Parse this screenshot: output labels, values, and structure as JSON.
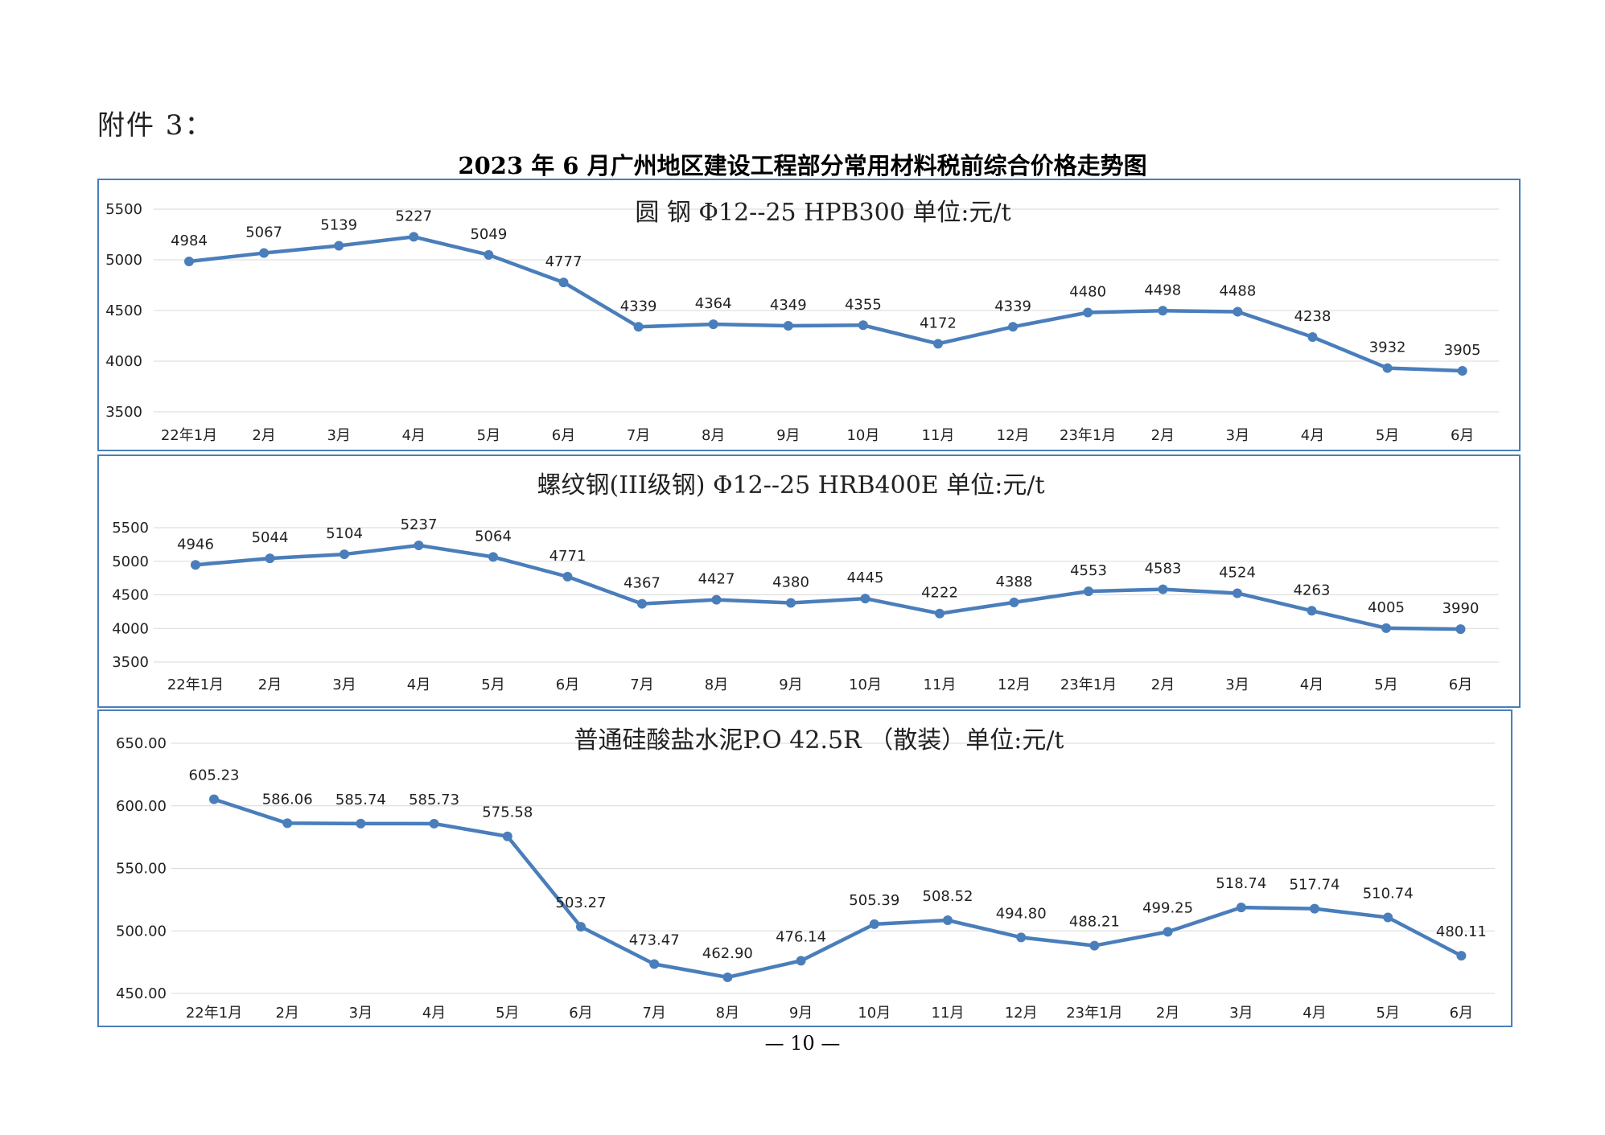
{
  "attachment_label": "附件 3：",
  "page_title": "2023 年 6 月广州地区建设工程部分常用材料税前综合价格走势图",
  "page_number": "— 10 —",
  "colors": {
    "line": "#4a7ebb",
    "border": "#4a7ebb",
    "grid": "#d9d9d9"
  },
  "chart_data": [
    {
      "type": "line",
      "title": "圆  钢 Φ12--25  HPB300  单位:元/t",
      "categories": [
        "22年1月",
        "2月",
        "3月",
        "4月",
        "5月",
        "6月",
        "7月",
        "8月",
        "9月",
        "10月",
        "11月",
        "12月",
        "23年1月",
        "2月",
        "3月",
        "4月",
        "5月",
        "6月"
      ],
      "values": [
        4984,
        5067,
        5139,
        5227,
        5049,
        4777,
        4339,
        4364,
        4349,
        4355,
        4172,
        4339,
        4480,
        4498,
        4488,
        4238,
        3932,
        3905
      ],
      "labels": [
        "4984",
        "5067",
        "5139",
        "5227",
        "5049",
        "4777",
        "4339",
        "4364",
        "4349",
        "4355",
        "4172",
        "4339",
        "4480",
        "4498",
        "4488",
        "4238",
        "3932",
        "3905"
      ],
      "yticks": [
        "3500",
        "4000",
        "4500",
        "5000",
        "5500"
      ],
      "ylim": [
        3500,
        5500
      ],
      "grid": true
    },
    {
      "type": "line",
      "title": "螺纹钢(III级钢) Φ12--25 HRB400E  单位:元/t",
      "categories": [
        "22年1月",
        "2月",
        "3月",
        "4月",
        "5月",
        "6月",
        "7月",
        "8月",
        "9月",
        "10月",
        "11月",
        "12月",
        "23年1月",
        "2月",
        "3月",
        "4月",
        "5月",
        "6月"
      ],
      "values": [
        4946,
        5044,
        5104,
        5237,
        5064,
        4771,
        4367,
        4427,
        4380,
        4445,
        4222,
        4388,
        4553,
        4583,
        4524,
        4263,
        4005,
        3990
      ],
      "labels": [
        "4946",
        "5044",
        "5104",
        "5237",
        "5064",
        "4771",
        "4367",
        "4427",
        "4380",
        "4445",
        "4222",
        "4388",
        "4553",
        "4583",
        "4524",
        "4263",
        "4005",
        "3990"
      ],
      "yticks": [
        "3500",
        "4000",
        "4500",
        "5000",
        "5500"
      ],
      "ylim": [
        3500,
        5500
      ],
      "grid": true
    },
    {
      "type": "line",
      "title": "普通硅酸盐水泥P.O 42.5R （散装）单位:元/t",
      "categories": [
        "22年1月",
        "2月",
        "3月",
        "4月",
        "5月",
        "6月",
        "7月",
        "8月",
        "9月",
        "10月",
        "11月",
        "12月",
        "23年1月",
        "2月",
        "3月",
        "4月",
        "5月",
        "6月"
      ],
      "values": [
        605.23,
        586.06,
        585.74,
        585.73,
        575.58,
        503.27,
        473.47,
        462.9,
        476.14,
        505.39,
        508.52,
        494.8,
        488.21,
        499.25,
        518.74,
        517.74,
        510.74,
        480.11
      ],
      "labels": [
        "605.23",
        "586.06",
        "585.74",
        "585.73",
        "575.58",
        "503.27",
        "473.47",
        "462.90",
        "476.14",
        "505.39",
        "508.52",
        "494.80",
        "488.21",
        "499.25",
        "518.74",
        "517.74",
        "510.74",
        "480.11"
      ],
      "yticks": [
        "450.00",
        "500.00",
        "550.00",
        "600.00",
        "650.00"
      ],
      "ylim": [
        450,
        650
      ],
      "grid": true
    }
  ]
}
